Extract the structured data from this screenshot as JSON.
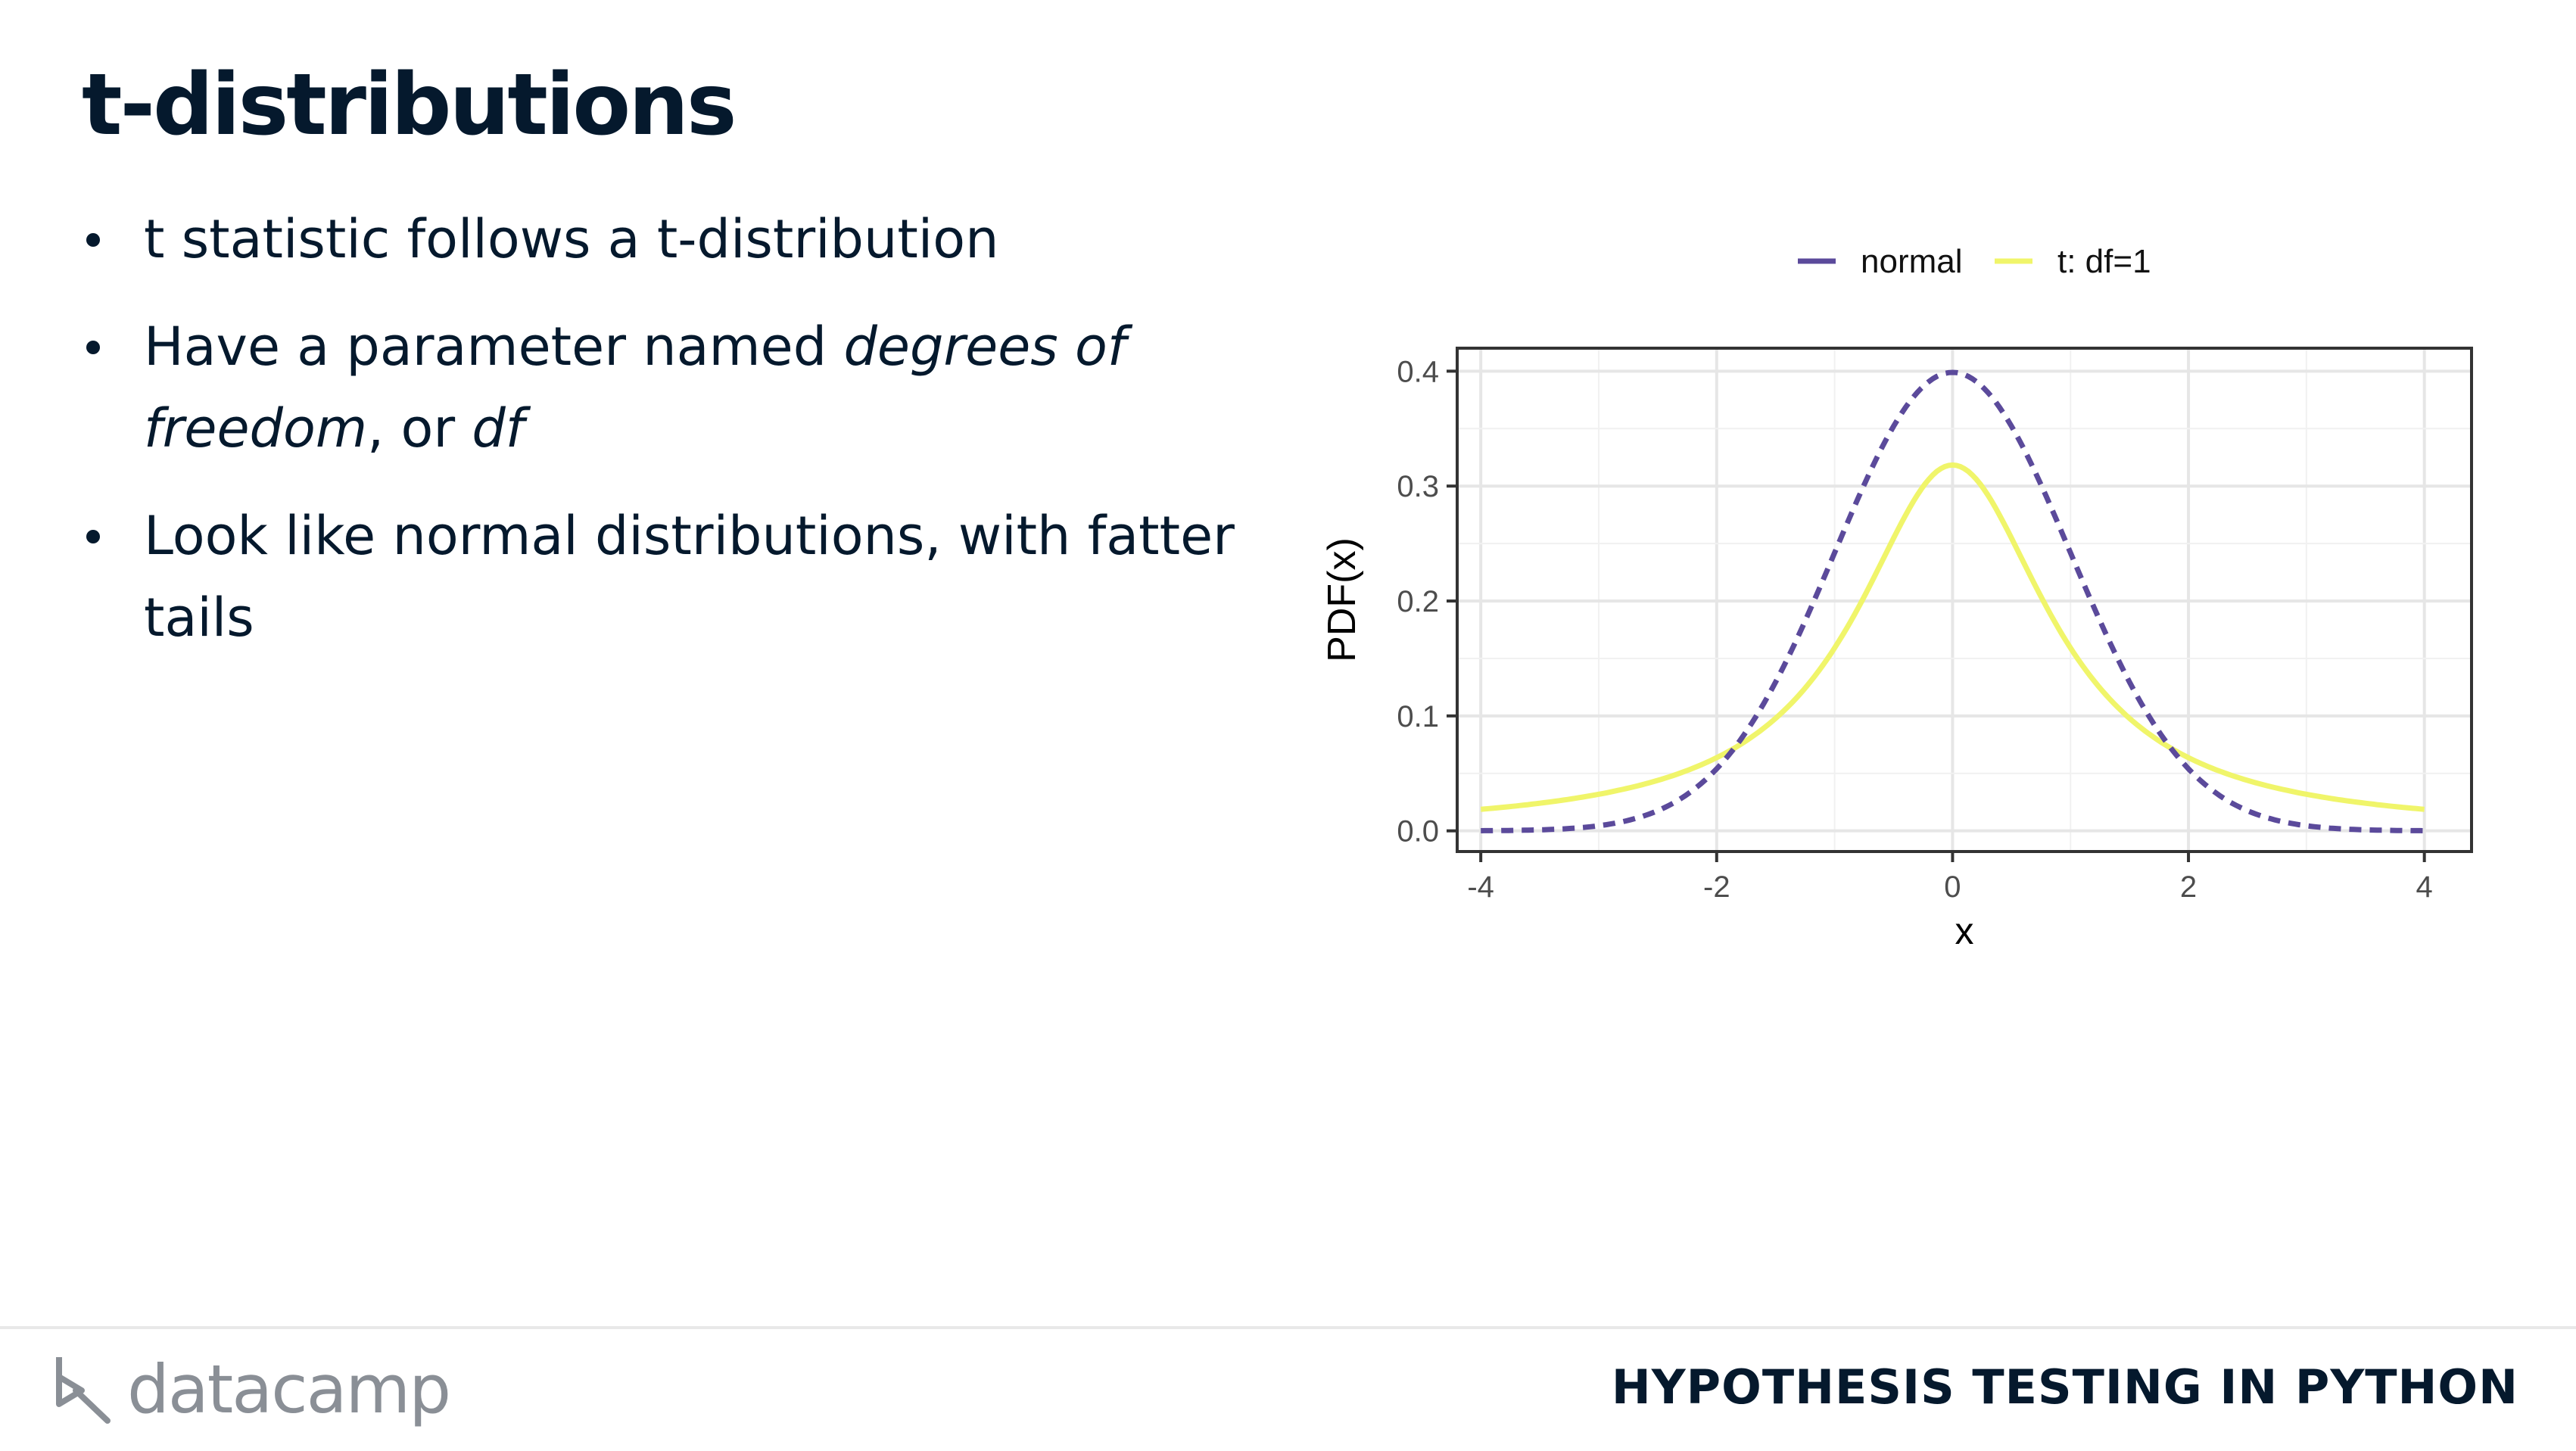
{
  "slide": {
    "title": "t-distributions",
    "bullets": [
      {
        "parts": [
          {
            "text": "t statistic follows a t-distribution",
            "italic": false
          }
        ]
      },
      {
        "parts": [
          {
            "text": "Have a parameter named ",
            "italic": false
          },
          {
            "text": "degrees of freedom",
            "italic": true
          },
          {
            "text": ", or ",
            "italic": false
          },
          {
            "text": "df",
            "italic": true
          }
        ]
      },
      {
        "parts": [
          {
            "text": "Look like normal distributions, with fatter tails",
            "italic": false
          }
        ]
      }
    ]
  },
  "footer": {
    "brand": "datacamp",
    "course": "HYPOTHESIS TESTING IN PYTHON"
  },
  "chart_data": {
    "type": "line",
    "title": "",
    "xlabel": "x",
    "ylabel": "PDF(x)",
    "xlim": [
      -4.2,
      4.4
    ],
    "ylim": [
      -0.018,
      0.42
    ],
    "xticks": [
      -4,
      -2,
      0,
      2,
      4
    ],
    "yticks": [
      0.0,
      0.1,
      0.2,
      0.3,
      0.4
    ],
    "ytick_labels": [
      "0.0",
      "0.1",
      "0.2",
      "0.3",
      "0.4"
    ],
    "grid": true,
    "legend": "top",
    "x": [
      -4,
      -3.5,
      -3,
      -2.5,
      -2,
      -1.5,
      -1,
      -0.5,
      0,
      0.5,
      1,
      1.5,
      2,
      2.5,
      3,
      3.5,
      4
    ],
    "series": [
      {
        "name": "normal",
        "style": "dashed",
        "color": "#5b4a9b",
        "values": [
          0.0001,
          0.0009,
          0.0044,
          0.0175,
          0.054,
          0.1295,
          0.242,
          0.3521,
          0.3989,
          0.3521,
          0.242,
          0.1295,
          0.054,
          0.0175,
          0.0044,
          0.0009,
          0.0001
        ]
      },
      {
        "name": "t: df=1",
        "style": "solid",
        "color": "#f0f56a",
        "values": [
          0.0187,
          0.024,
          0.0318,
          0.0439,
          0.0637,
          0.0979,
          0.1592,
          0.2546,
          0.3183,
          0.2546,
          0.1592,
          0.0979,
          0.0637,
          0.0439,
          0.0318,
          0.024,
          0.0187
        ]
      }
    ]
  }
}
